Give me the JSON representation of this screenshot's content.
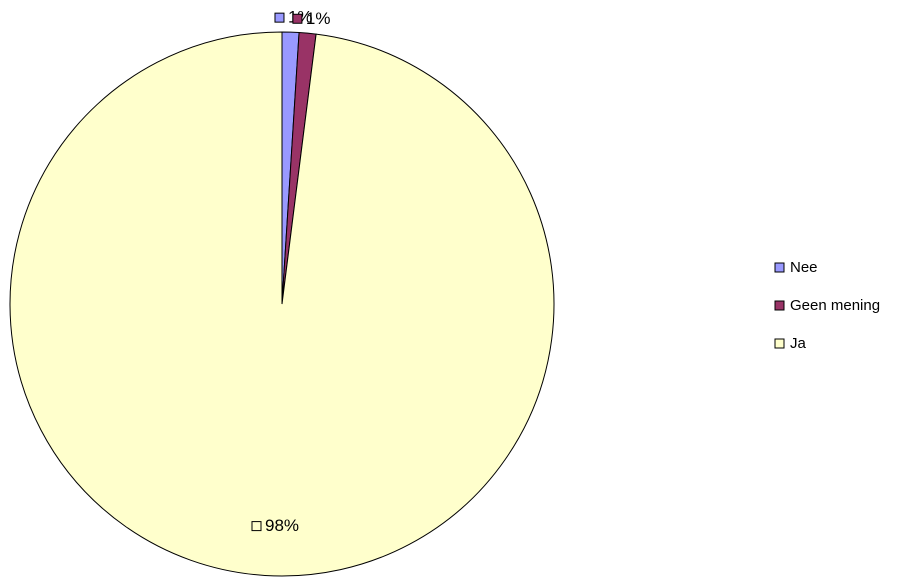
{
  "chart_data": {
    "type": "pie",
    "categories": [
      "Nee",
      "Geen mening",
      "Ja"
    ],
    "values": [
      1,
      1,
      98
    ],
    "value_labels": [
      "1%",
      "1%",
      "98%"
    ],
    "colors": [
      "#9999ff",
      "#993366",
      "#ffffcc"
    ],
    "legend": "right"
  }
}
